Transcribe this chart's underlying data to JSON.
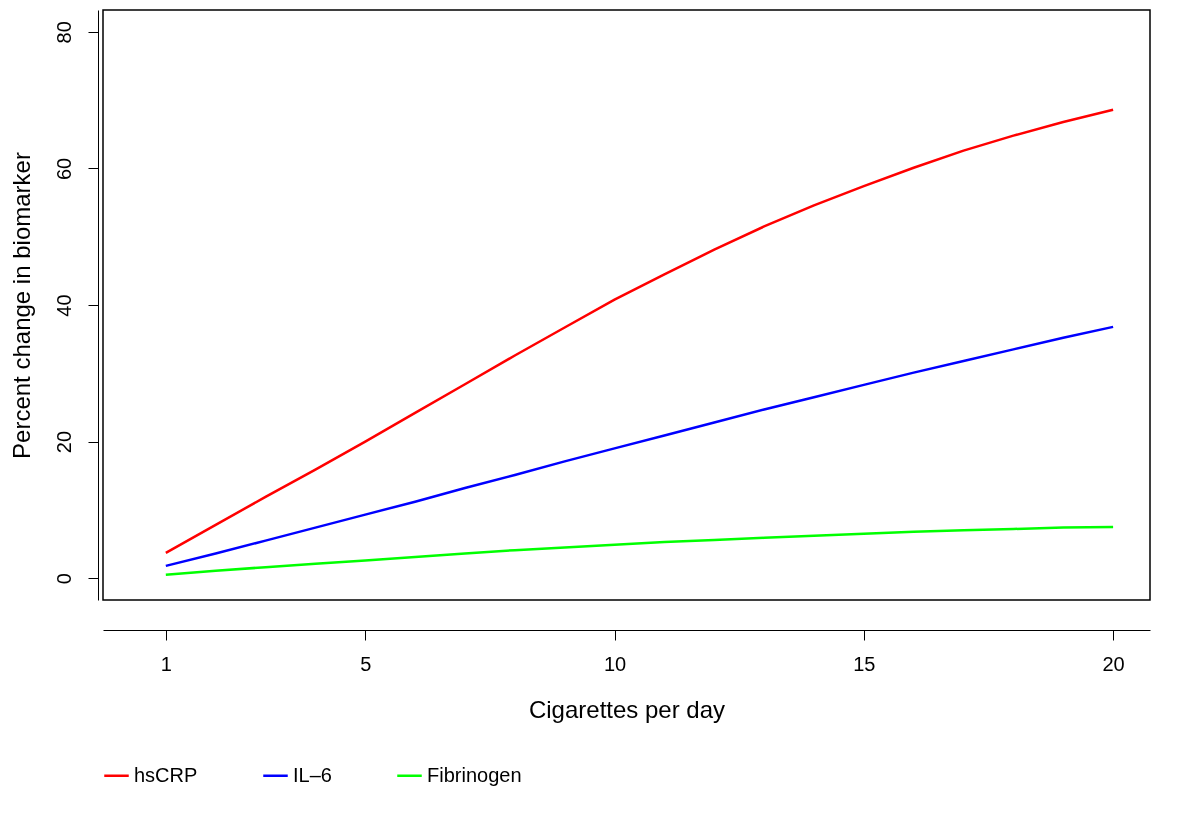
{
  "chart_data": {
    "type": "line",
    "xlabel": "Cigarettes per day",
    "ylabel": "Percent change in biomarker",
    "x": [
      1,
      2,
      3,
      4,
      5,
      6,
      7,
      8,
      9,
      10,
      11,
      12,
      13,
      14,
      15,
      16,
      17,
      18,
      19,
      20
    ],
    "series": [
      {
        "name": "hsCRP",
        "color": "#ff0000",
        "values": [
          3.7,
          7.8,
          11.9,
          15.9,
          20,
          24.2,
          28.4,
          32.6,
          36.7,
          40.8,
          44.5,
          48.1,
          51.5,
          54.6,
          57.4,
          60.1,
          62.6,
          64.8,
          66.8,
          68.6
        ]
      },
      {
        "name": "IL–6",
        "color": "#0000ff",
        "values": [
          1.8,
          3.6,
          5.5,
          7.4,
          9.3,
          11.2,
          13.2,
          15.1,
          17.1,
          19,
          20.9,
          22.8,
          24.7,
          26.5,
          28.3,
          30.1,
          31.8,
          33.5,
          35.2,
          36.8
        ]
      },
      {
        "name": "Fibrinogen",
        "color": "#00ff00",
        "values": [
          0.5,
          1.1,
          1.6,
          2.1,
          2.6,
          3.1,
          3.6,
          4.1,
          4.5,
          4.9,
          5.3,
          5.6,
          5.9,
          6.2,
          6.5,
          6.8,
          7.0,
          7.2,
          7.4,
          7.5
        ]
      }
    ],
    "xlim": [
      -0.26,
      20.74
    ],
    "ylim": [
      -3.2,
      83.2
    ],
    "xticks": [
      1,
      5,
      10,
      15,
      20
    ],
    "yticks": [
      0,
      20,
      40,
      60,
      80
    ],
    "legend": "bottom",
    "line_style": "solid"
  }
}
